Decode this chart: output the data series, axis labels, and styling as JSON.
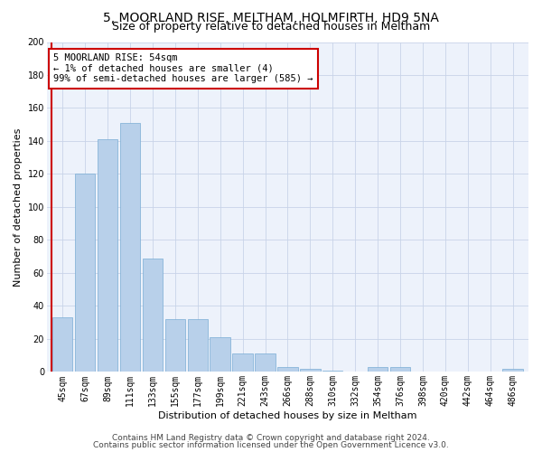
{
  "title1": "5, MOORLAND RISE, MELTHAM, HOLMFIRTH, HD9 5NA",
  "title2": "Size of property relative to detached houses in Meltham",
  "xlabel": "Distribution of detached houses by size in Meltham",
  "ylabel": "Number of detached properties",
  "categories": [
    "45sqm",
    "67sqm",
    "89sqm",
    "111sqm",
    "133sqm",
    "155sqm",
    "177sqm",
    "199sqm",
    "221sqm",
    "243sqm",
    "266sqm",
    "288sqm",
    "310sqm",
    "332sqm",
    "354sqm",
    "376sqm",
    "398sqm",
    "420sqm",
    "442sqm",
    "464sqm",
    "486sqm"
  ],
  "values": [
    33,
    120,
    141,
    151,
    69,
    32,
    32,
    21,
    11,
    11,
    3,
    2,
    1,
    0,
    3,
    3,
    0,
    0,
    0,
    0,
    2
  ],
  "bar_color": "#b8d0ea",
  "bar_edge_color": "#7aadd4",
  "highlight_color": "#cc0000",
  "annotation_text": "5 MOORLAND RISE: 54sqm\n← 1% of detached houses are smaller (4)\n99% of semi-detached houses are larger (585) →",
  "annotation_box_color": "#ffffff",
  "annotation_box_edge": "#cc0000",
  "ylim": [
    0,
    200
  ],
  "yticks": [
    0,
    20,
    40,
    60,
    80,
    100,
    120,
    140,
    160,
    180,
    200
  ],
  "footer1": "Contains HM Land Registry data © Crown copyright and database right 2024.",
  "footer2": "Contains public sector information licensed under the Open Government Licence v3.0.",
  "plot_bg_color": "#edf2fb",
  "title1_fontsize": 10,
  "title2_fontsize": 9,
  "axis_label_fontsize": 8,
  "tick_fontsize": 7,
  "annotation_fontsize": 7.5,
  "footer_fontsize": 6.5
}
